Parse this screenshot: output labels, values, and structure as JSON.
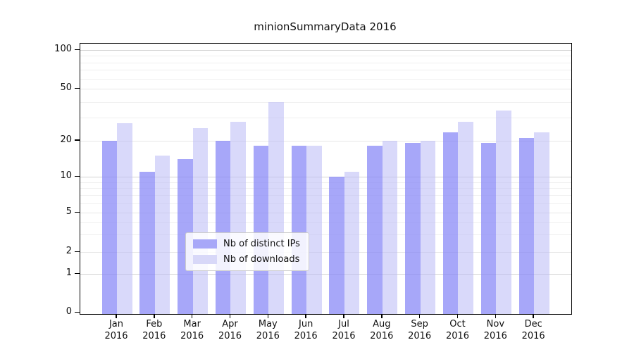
{
  "title": "minionSummaryData 2016",
  "chart_data": {
    "type": "bar",
    "title": "minionSummaryData 2016",
    "categories": [
      "Jan 2016",
      "Feb 2016",
      "Mar 2016",
      "Apr 2016",
      "May 2016",
      "Jun 2016",
      "Jul 2016",
      "Aug 2016",
      "Sep 2016",
      "Oct 2016",
      "Nov 2016",
      "Dec 2016"
    ],
    "series": [
      {
        "name": "Nb of distinct IPs",
        "color": "#a8a8f8",
        "fill": "rgba(133,133,246,0.72)",
        "values": [
          20,
          11,
          14,
          20,
          18,
          18,
          10,
          18,
          19,
          23,
          19,
          21
        ]
      },
      {
        "name": "Nb of downloads",
        "color": "#d8d8f8",
        "fill": "rgba(185,185,246,0.55)",
        "values": [
          27,
          15,
          25,
          28,
          40,
          18,
          11,
          20,
          20,
          28,
          34,
          23
        ]
      }
    ],
    "xlabel": "",
    "ylabel": "",
    "yscale": "log-like with 0 baseline (symlog)",
    "y_tick_labels": [
      0,
      1,
      2,
      5,
      10,
      20,
      50,
      100
    ],
    "y_gridlines_decade": [
      1,
      10,
      100
    ],
    "y_gridlines_minor": [
      2,
      3,
      4,
      5,
      6,
      7,
      8,
      9,
      20,
      30,
      40,
      50,
      60,
      70,
      80,
      90
    ],
    "ylim": [
      0,
      110
    ],
    "grid": true,
    "legend_position": "lower center",
    "legend_entries": [
      "Nb of distinct IPs",
      "Nb of downloads"
    ]
  }
}
